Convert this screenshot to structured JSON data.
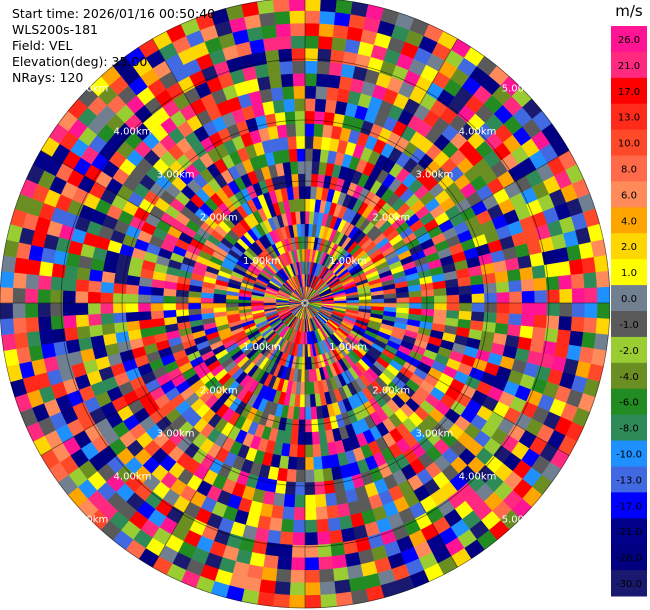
{
  "header": {
    "start_time": "Start time: 2026/01/16 00:50:40",
    "instrument": "WLS200s-181",
    "field": "Field: VEL",
    "elevation": "Elevation(deg): 35.00",
    "nrays": "NRays: 120"
  },
  "colorbar": {
    "unit": "m/s",
    "ticks": [
      "26.0",
      "21.0",
      "17.0",
      "13.0",
      "10.0",
      "8.0",
      "6.0",
      "4.0",
      "2.0",
      "1.0",
      "0.0",
      "-1.0",
      "-2.0",
      "-4.0",
      "-6.0",
      "-8.0",
      "-10.0",
      "-13.0",
      "-17.0",
      "-21.0",
      "-26.0",
      "-30.0"
    ],
    "colors": [
      "#ff1493",
      "#ff2a7f",
      "#ff0000",
      "#ff2a1a",
      "#ff4a2a",
      "#ff6a4a",
      "#ff8a5a",
      "#ffa500",
      "#ffd700",
      "#ffff00",
      "#708090",
      "#5a5a5a",
      "#9acd32",
      "#6b8e23",
      "#228b22",
      "#2e8b57",
      "#1e90ff",
      "#4169e1",
      "#0000ff",
      "#00008b",
      "#000080",
      "#191970"
    ]
  },
  "chart_data": {
    "type": "heatmap",
    "subtype": "ppi-polar",
    "field": "VEL",
    "nrays": 120,
    "ngates": 24,
    "range_rings": [
      {
        "label": "1.00km"
      },
      {
        "label": "2.00km"
      },
      {
        "label": "3.00km"
      },
      {
        "label": "4.00km"
      },
      {
        "label": "5.00km"
      }
    ],
    "values_range": [
      -30.0,
      26.0
    ],
    "grid": true
  }
}
